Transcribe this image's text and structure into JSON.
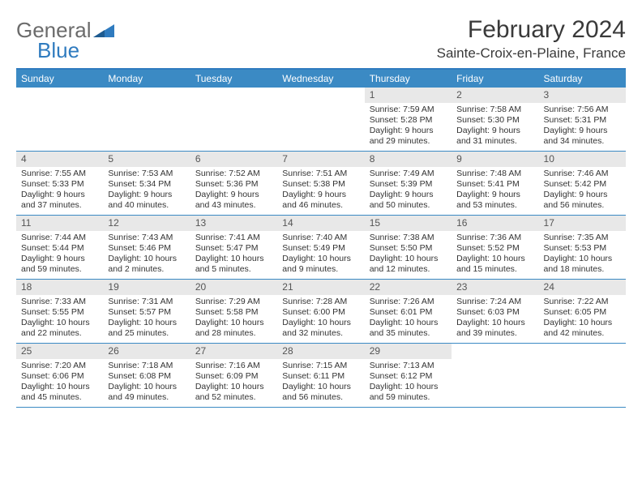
{
  "brand": {
    "word1": "General",
    "word2": "Blue",
    "color_gray": "#6b6b6b",
    "color_blue": "#2f7bbf"
  },
  "title": "February 2024",
  "location": "Sainte-Croix-en-Plaine, France",
  "accent_color": "#3b8ac4",
  "daynum_bg": "#e8e8e8",
  "days_of_week": [
    "Sunday",
    "Monday",
    "Tuesday",
    "Wednesday",
    "Thursday",
    "Friday",
    "Saturday"
  ],
  "weeks": [
    [
      null,
      null,
      null,
      null,
      {
        "n": "1",
        "sr": "7:59 AM",
        "ss": "5:28 PM",
        "dl": "9 hours and 29 minutes."
      },
      {
        "n": "2",
        "sr": "7:58 AM",
        "ss": "5:30 PM",
        "dl": "9 hours and 31 minutes."
      },
      {
        "n": "3",
        "sr": "7:56 AM",
        "ss": "5:31 PM",
        "dl": "9 hours and 34 minutes."
      }
    ],
    [
      {
        "n": "4",
        "sr": "7:55 AM",
        "ss": "5:33 PM",
        "dl": "9 hours and 37 minutes."
      },
      {
        "n": "5",
        "sr": "7:53 AM",
        "ss": "5:34 PM",
        "dl": "9 hours and 40 minutes."
      },
      {
        "n": "6",
        "sr": "7:52 AM",
        "ss": "5:36 PM",
        "dl": "9 hours and 43 minutes."
      },
      {
        "n": "7",
        "sr": "7:51 AM",
        "ss": "5:38 PM",
        "dl": "9 hours and 46 minutes."
      },
      {
        "n": "8",
        "sr": "7:49 AM",
        "ss": "5:39 PM",
        "dl": "9 hours and 50 minutes."
      },
      {
        "n": "9",
        "sr": "7:48 AM",
        "ss": "5:41 PM",
        "dl": "9 hours and 53 minutes."
      },
      {
        "n": "10",
        "sr": "7:46 AM",
        "ss": "5:42 PM",
        "dl": "9 hours and 56 minutes."
      }
    ],
    [
      {
        "n": "11",
        "sr": "7:44 AM",
        "ss": "5:44 PM",
        "dl": "9 hours and 59 minutes."
      },
      {
        "n": "12",
        "sr": "7:43 AM",
        "ss": "5:46 PM",
        "dl": "10 hours and 2 minutes."
      },
      {
        "n": "13",
        "sr": "7:41 AM",
        "ss": "5:47 PM",
        "dl": "10 hours and 5 minutes."
      },
      {
        "n": "14",
        "sr": "7:40 AM",
        "ss": "5:49 PM",
        "dl": "10 hours and 9 minutes."
      },
      {
        "n": "15",
        "sr": "7:38 AM",
        "ss": "5:50 PM",
        "dl": "10 hours and 12 minutes."
      },
      {
        "n": "16",
        "sr": "7:36 AM",
        "ss": "5:52 PM",
        "dl": "10 hours and 15 minutes."
      },
      {
        "n": "17",
        "sr": "7:35 AM",
        "ss": "5:53 PM",
        "dl": "10 hours and 18 minutes."
      }
    ],
    [
      {
        "n": "18",
        "sr": "7:33 AM",
        "ss": "5:55 PM",
        "dl": "10 hours and 22 minutes."
      },
      {
        "n": "19",
        "sr": "7:31 AM",
        "ss": "5:57 PM",
        "dl": "10 hours and 25 minutes."
      },
      {
        "n": "20",
        "sr": "7:29 AM",
        "ss": "5:58 PM",
        "dl": "10 hours and 28 minutes."
      },
      {
        "n": "21",
        "sr": "7:28 AM",
        "ss": "6:00 PM",
        "dl": "10 hours and 32 minutes."
      },
      {
        "n": "22",
        "sr": "7:26 AM",
        "ss": "6:01 PM",
        "dl": "10 hours and 35 minutes."
      },
      {
        "n": "23",
        "sr": "7:24 AM",
        "ss": "6:03 PM",
        "dl": "10 hours and 39 minutes."
      },
      {
        "n": "24",
        "sr": "7:22 AM",
        "ss": "6:05 PM",
        "dl": "10 hours and 42 minutes."
      }
    ],
    [
      {
        "n": "25",
        "sr": "7:20 AM",
        "ss": "6:06 PM",
        "dl": "10 hours and 45 minutes."
      },
      {
        "n": "26",
        "sr": "7:18 AM",
        "ss": "6:08 PM",
        "dl": "10 hours and 49 minutes."
      },
      {
        "n": "27",
        "sr": "7:16 AM",
        "ss": "6:09 PM",
        "dl": "10 hours and 52 minutes."
      },
      {
        "n": "28",
        "sr": "7:15 AM",
        "ss": "6:11 PM",
        "dl": "10 hours and 56 minutes."
      },
      {
        "n": "29",
        "sr": "7:13 AM",
        "ss": "6:12 PM",
        "dl": "10 hours and 59 minutes."
      },
      null,
      null
    ]
  ],
  "labels": {
    "sunrise": "Sunrise: ",
    "sunset": "Sunset: ",
    "daylight": "Daylight: "
  }
}
